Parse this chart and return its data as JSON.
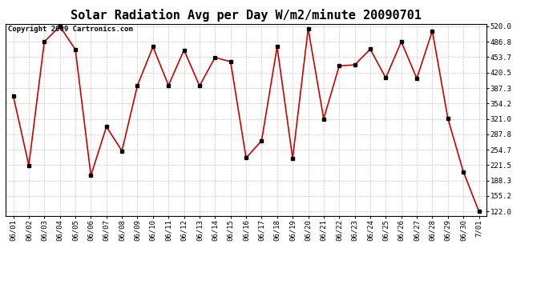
{
  "title": "Solar Radiation Avg per Day W/m2/minute 20090701",
  "copyright": "Copyright 2009 Cartronics.com",
  "dates": [
    "06/01",
    "06/02",
    "06/03",
    "06/04",
    "06/05",
    "06/06",
    "06/07",
    "06/08",
    "06/09",
    "06/10",
    "06/11",
    "06/12",
    "06/13",
    "06/14",
    "06/15",
    "06/16",
    "06/17",
    "06/18",
    "06/19",
    "06/20",
    "06/21",
    "06/22",
    "06/23",
    "06/24",
    "06/25",
    "06/26",
    "06/27",
    "06/28",
    "06/29",
    "06/30",
    "7/01"
  ],
  "values": [
    370,
    221,
    487,
    520,
    470,
    199,
    304,
    252,
    393,
    476,
    393,
    469,
    392,
    453,
    444,
    237,
    274,
    476,
    236,
    515,
    321,
    435,
    437,
    471,
    409,
    487,
    408,
    510,
    322,
    207,
    122
  ],
  "line_color": "#cc0000",
  "marker_color": "#000000",
  "grid_color": "#c8c8c8",
  "bg_color": "#ffffff",
  "ymin": 122.0,
  "ymax": 520.0,
  "yticks": [
    122.0,
    155.2,
    188.3,
    221.5,
    254.7,
    287.8,
    321.0,
    354.2,
    387.3,
    420.5,
    453.7,
    486.8,
    520.0
  ],
  "title_fontsize": 11,
  "copyright_fontsize": 6.5,
  "tick_fontsize": 6.5,
  "figwidth": 6.9,
  "figheight": 3.75,
  "dpi": 100
}
